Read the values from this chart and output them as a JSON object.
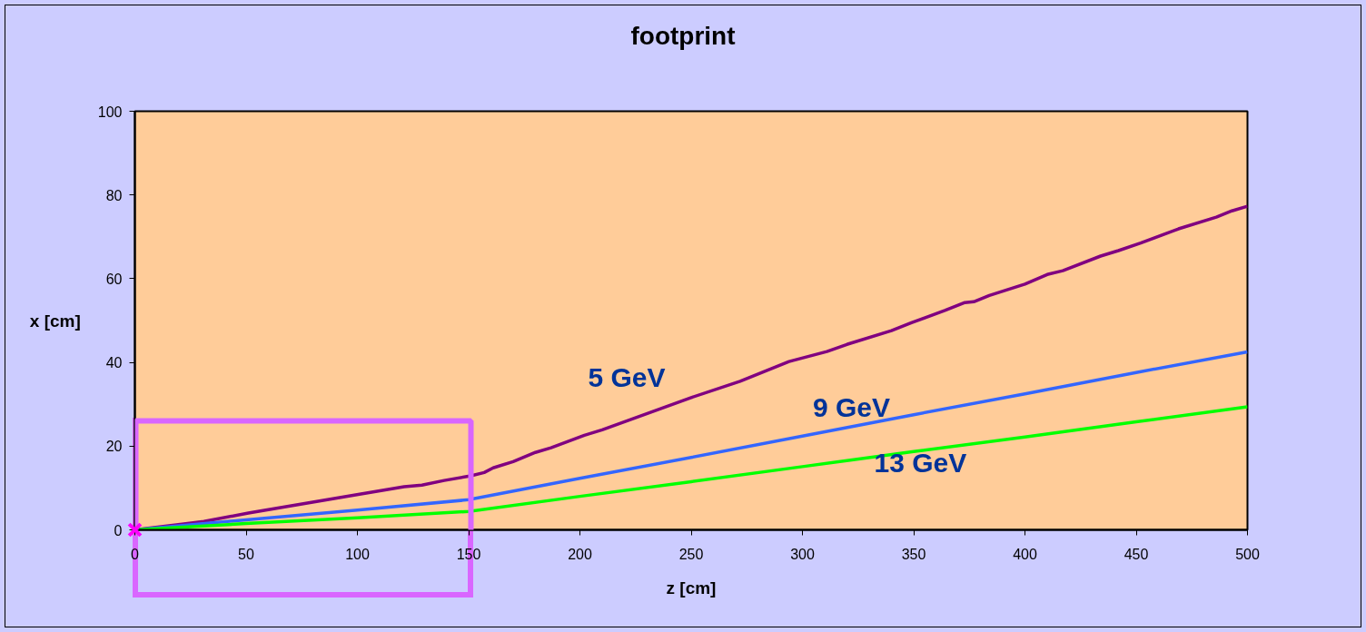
{
  "chart_data": {
    "type": "line",
    "title": "footprint",
    "xlabel": "z [cm]",
    "ylabel": "x [cm]",
    "xlim": [
      0,
      500
    ],
    "ylim": [
      0,
      100
    ],
    "xticks": [
      0,
      50,
      100,
      150,
      200,
      250,
      300,
      350,
      400,
      450,
      500
    ],
    "yticks": [
      0,
      20,
      40,
      60,
      80,
      100
    ],
    "grid": false,
    "series": [
      {
        "name": "5 GeV",
        "color": "#800080",
        "x": [
          0,
          22,
          31,
          51,
          101,
          121,
          129,
          139,
          151,
          157,
          161,
          170,
          180,
          187,
          202,
          210,
          250,
          272,
          294,
          311,
          320,
          340,
          349,
          364,
          373,
          377,
          384,
          400,
          410,
          417,
          434,
          442,
          452,
          469,
          486,
          493,
          500
        ],
        "values": [
          0,
          1.4,
          2.0,
          4.0,
          8.5,
          10.3,
          10.7,
          11.8,
          12.9,
          13.7,
          14.8,
          16.3,
          18.5,
          19.6,
          22.6,
          23.9,
          31.6,
          35.5,
          40.2,
          42.6,
          44.3,
          47.6,
          49.5,
          52.4,
          54.3,
          54.5,
          56.0,
          58.7,
          61.0,
          61.9,
          65.4,
          66.7,
          68.5,
          71.9,
          74.7,
          76.2,
          77.3
        ]
      },
      {
        "name": "9 GeV",
        "color": "#3366ff",
        "x": [
          0,
          50,
          100,
          150,
          200,
          250,
          300,
          350,
          400,
          450,
          500
        ],
        "values": [
          0,
          2.4,
          4.7,
          7.2,
          12.3,
          17.3,
          22.4,
          27.5,
          32.5,
          37.6,
          42.5
        ]
      },
      {
        "name": "13 GeV",
        "color": "#00ff00",
        "x": [
          0,
          50,
          100,
          150,
          200,
          250,
          300,
          350,
          400,
          450,
          500
        ],
        "values": [
          0,
          1.5,
          2.9,
          4.4,
          8.0,
          11.5,
          15.1,
          18.7,
          22.2,
          25.8,
          29.4
        ]
      },
      {
        "type": "scatter",
        "color": "#ff00ff",
        "marker": "cross",
        "x": [
          0
        ],
        "values": [
          0
        ]
      }
    ]
  }
}
